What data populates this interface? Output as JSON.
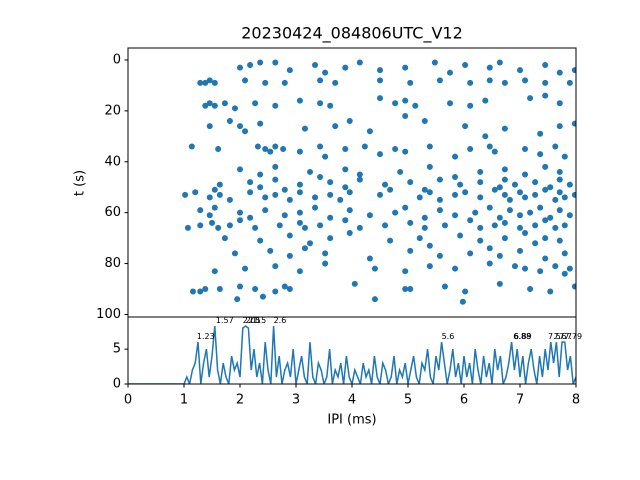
{
  "chart_data": [
    {
      "type": "scatter",
      "title": "20230424_084806UTC_V12",
      "ylabel": "t (s)",
      "color": "#1f77b4",
      "xlim": [
        0,
        8
      ],
      "ylim": [
        101,
        -4.7
      ],
      "yticks": [
        0,
        20,
        40,
        60,
        80,
        100
      ],
      "x": [
        2.0,
        2.18,
        2.36,
        2.63,
        2.89,
        3.34,
        3.52,
        3.88,
        4.14,
        4.5,
        4.95,
        5.48,
        5.75,
        6.02,
        6.46,
        6.64,
        7.0,
        7.45,
        7.71,
        7.98,
        1.29,
        1.38,
        1.46,
        1.55,
        2.09,
        2.45,
        2.8,
        3.43,
        3.7,
        4.5,
        5.04,
        5.57,
        6.11,
        6.46,
        6.73,
        7.09,
        7.45,
        7.89,
        1.38,
        1.46,
        1.55,
        1.73,
        1.91,
        2.27,
        2.63,
        3.07,
        3.43,
        3.61,
        4.5,
        4.77,
        4.95,
        5.13,
        5.75,
        6.11,
        6.38,
        7.18,
        7.45,
        7.71,
        1.46,
        1.82,
        2.0,
        2.09,
        2.36,
        3.16,
        3.7,
        3.96,
        4.32,
        4.95,
        5.3,
        6.02,
        6.38,
        6.73,
        7.36,
        7.71,
        7.98,
        1.14,
        1.61,
        2.32,
        2.45,
        2.54,
        2.63,
        2.77,
        3.07,
        3.43,
        3.52,
        3.88,
        4.23,
        4.5,
        4.77,
        4.95,
        5.39,
        5.84,
        6.11,
        6.46,
        6.55,
        7.09,
        7.36,
        7.63,
        7.8,
        2.0,
        2.36,
        2.63,
        3.25,
        3.43,
        3.88,
        4.14,
        4.86,
        5.39,
        5.84,
        6.29,
        6.73,
        7.09,
        7.45,
        7.71,
        1.64,
        2.18,
        2.36,
        2.63,
        3.07,
        3.61,
        3.88,
        4.14,
        4.59,
        5.04,
        5.3,
        5.57,
        5.93,
        6.29,
        6.64,
        6.73,
        6.91,
        7.27,
        7.54,
        7.71,
        7.89,
        1.02,
        1.2,
        1.46,
        1.55,
        1.64,
        1.82,
        2.18,
        2.45,
        2.63,
        2.8,
        2.89,
        3.07,
        3.34,
        3.61,
        3.79,
        3.96,
        4.5,
        4.68,
        5.21,
        5.39,
        5.57,
        5.84,
        6.02,
        6.29,
        6.55,
        6.73,
        6.82,
        7.0,
        7.09,
        7.27,
        7.45,
        7.63,
        7.71,
        7.8,
        7.98,
        1.29,
        1.46,
        1.55,
        2.0,
        2.18,
        2.45,
        2.8,
        3.07,
        3.34,
        3.61,
        3.96,
        4.32,
        4.77,
        4.95,
        5.3,
        5.57,
        5.84,
        6.2,
        6.46,
        6.64,
        6.82,
        7.0,
        7.18,
        7.36,
        7.54,
        7.71,
        7.89,
        1.07,
        1.29,
        1.5,
        1.61,
        1.82,
        2.0,
        2.27,
        2.71,
        3.07,
        3.16,
        3.43,
        3.88,
        4.14,
        4.59,
        5.04,
        5.3,
        5.66,
        6.11,
        6.29,
        6.55,
        6.73,
        7.0,
        7.27,
        7.45,
        7.63,
        7.8,
        1.73,
        2.36,
        2.89,
        3.25,
        3.61,
        3.96,
        4.68,
        5.21,
        5.39,
        5.93,
        6.29,
        6.73,
        7.09,
        7.27,
        7.45,
        7.71,
        1.91,
        2.54,
        2.89,
        3.16,
        3.52,
        4.32,
        5.04,
        5.57,
        6.11,
        6.46,
        6.64,
        7.0,
        7.45,
        7.8,
        1.55,
        2.09,
        2.63,
        3.07,
        3.52,
        4.41,
        4.95,
        5.39,
        5.84,
        6.46,
        6.91,
        7.09,
        7.36,
        7.63,
        7.8,
        7.89,
        1.16,
        1.29,
        1.38,
        1.64,
        2.0,
        2.27,
        2.63,
        2.8,
        2.89,
        4.05,
        4.95,
        5.04,
        5.66,
        6.02,
        6.64,
        7.18,
        7.54,
        7.98,
        1.95,
        2.41,
        4.41,
        5.98
      ],
      "values": [
        3,
        2,
        1,
        1,
        4,
        2,
        5,
        3,
        1,
        4,
        3,
        1,
        5,
        2,
        3,
        1,
        4,
        2,
        5,
        4,
        9,
        9,
        8,
        9,
        8,
        9,
        9,
        8,
        9,
        8,
        9,
        8,
        9,
        8,
        9,
        8,
        9,
        9,
        18,
        17,
        18,
        17,
        19,
        17,
        18,
        16,
        17,
        18,
        15,
        17,
        16,
        18,
        17,
        18,
        16,
        15,
        14,
        17,
        26,
        24,
        26,
        28,
        25,
        27,
        26,
        24,
        28,
        22,
        24,
        26,
        30,
        27,
        29,
        26,
        25,
        34,
        35,
        34,
        35,
        36,
        34,
        35,
        36,
        34,
        38,
        35,
        34,
        37,
        35,
        36,
        34,
        38,
        35,
        34,
        36,
        35,
        37,
        34,
        38,
        43,
        45,
        42,
        44,
        46,
        43,
        45,
        44,
        42,
        46,
        44,
        43,
        45,
        42,
        44,
        49,
        48,
        50,
        47,
        49,
        48,
        50,
        47,
        49,
        48,
        51,
        47,
        49,
        48,
        50,
        47,
        49,
        48,
        50,
        47,
        49,
        53,
        52,
        54,
        51,
        53,
        55,
        52,
        54,
        53,
        51,
        55,
        52,
        54,
        53,
        55,
        52,
        53,
        51,
        54,
        52,
        55,
        53,
        52,
        54,
        51,
        53,
        55,
        52,
        54,
        53,
        51,
        55,
        52,
        54,
        53,
        59,
        61,
        58,
        60,
        62,
        59,
        61,
        60,
        58,
        62,
        59,
        61,
        60,
        58,
        62,
        59,
        61,
        60,
        58,
        62,
        59,
        61,
        60,
        58,
        62,
        59,
        61,
        66,
        65,
        64,
        66,
        65,
        63,
        66,
        65,
        64,
        66,
        65,
        63,
        66,
        65,
        64,
        66,
        65,
        63,
        66,
        65,
        64,
        66,
        65,
        63,
        66,
        65,
        70,
        71,
        69,
        72,
        70,
        68,
        71,
        70,
        73,
        69,
        71,
        70,
        68,
        72,
        70,
        71,
        76,
        75,
        77,
        74,
        76,
        78,
        75,
        77,
        76,
        74,
        77,
        75,
        78,
        76,
        83,
        82,
        81,
        83,
        80,
        82,
        83,
        81,
        82,
        80,
        81,
        82,
        83,
        81,
        84,
        82,
        91,
        91,
        90,
        90,
        89,
        90,
        91,
        89,
        90,
        88,
        90,
        90,
        89,
        91,
        88,
        90,
        91,
        89,
        94,
        93,
        94,
        95
      ]
    },
    {
      "type": "line",
      "xlabel": "IPI (ms)",
      "color": "#1f77b4",
      "xlim": [
        0,
        8
      ],
      "xticks": [
        0,
        1,
        2,
        3,
        4,
        5,
        6,
        7,
        8
      ],
      "ylim": [
        0,
        9.6
      ],
      "yticks": [
        0,
        5
      ],
      "x": [
        0,
        1,
        1.05,
        1.1,
        1.15,
        1.2,
        1.25,
        1.3,
        1.35,
        1.4,
        1.45,
        1.5,
        1.55,
        1.6,
        1.65,
        1.7,
        1.75,
        1.8,
        1.85,
        1.9,
        1.95,
        2,
        2.05,
        2.1,
        2.15,
        2.2,
        2.25,
        2.3,
        2.35,
        2.4,
        2.45,
        2.5,
        2.55,
        2.6,
        2.65,
        2.7,
        2.75,
        2.8,
        2.85,
        2.9,
        2.95,
        3,
        3.05,
        3.1,
        3.15,
        3.2,
        3.25,
        3.3,
        3.35,
        3.4,
        3.45,
        3.5,
        3.55,
        3.6,
        3.65,
        3.7,
        3.75,
        3.8,
        3.85,
        3.9,
        3.95,
        4,
        4.05,
        4.1,
        4.15,
        4.2,
        4.25,
        4.3,
        4.35,
        4.4,
        4.45,
        4.5,
        4.55,
        4.6,
        4.65,
        4.7,
        4.75,
        4.8,
        4.85,
        4.9,
        4.95,
        5,
        5.05,
        5.1,
        5.15,
        5.2,
        5.25,
        5.3,
        5.35,
        5.4,
        5.45,
        5.5,
        5.55,
        5.6,
        5.65,
        5.7,
        5.75,
        5.8,
        5.85,
        5.9,
        5.95,
        6,
        6.05,
        6.1,
        6.15,
        6.2,
        6.25,
        6.3,
        6.35,
        6.4,
        6.45,
        6.5,
        6.55,
        6.6,
        6.65,
        6.7,
        6.75,
        6.8,
        6.85,
        6.9,
        6.95,
        7,
        7.05,
        7.1,
        7.15,
        7.2,
        7.25,
        7.3,
        7.35,
        7.4,
        7.45,
        7.5,
        7.55,
        7.6,
        7.65,
        7.7,
        7.75,
        7.8,
        7.85,
        7.9,
        7.95,
        8
      ],
      "values": [
        0,
        0,
        1,
        0,
        2,
        3,
        6,
        0,
        3,
        5,
        1,
        4,
        8.3,
        2,
        0,
        3,
        1,
        0,
        4,
        2,
        3,
        1,
        8,
        8.3,
        8,
        2,
        5,
        1,
        3,
        0,
        6,
        2,
        0,
        8.3,
        1,
        4,
        0,
        2,
        3,
        1,
        5,
        0,
        2,
        4,
        1,
        0,
        6,
        1,
        0,
        3,
        2,
        0,
        1,
        5,
        0,
        2,
        1,
        3,
        0,
        4,
        1,
        0,
        2,
        1,
        0,
        3,
        1,
        2,
        0,
        4,
        1,
        0,
        3,
        2,
        0,
        1,
        4,
        0,
        2,
        1,
        3,
        0,
        2,
        4,
        1,
        0,
        3,
        2,
        5,
        1,
        0,
        4,
        2,
        6,
        3,
        0,
        2,
        5,
        1,
        3,
        0,
        4,
        1,
        3,
        0,
        5,
        2,
        0,
        4,
        1,
        3,
        0,
        5,
        2,
        4,
        0,
        1,
        3,
        6,
        2,
        5,
        1,
        4,
        0,
        3,
        5,
        2,
        0,
        4,
        1,
        5,
        2,
        6,
        3,
        6,
        1,
        6,
        6,
        2,
        4,
        0,
        1
      ],
      "annotations": [
        {
          "text": "1.23",
          "x": 1.23,
          "y": 6
        },
        {
          "text": "1.57",
          "x": 1.57,
          "y": 8.3
        },
        {
          "text": "2.05",
          "x": 2.05,
          "y": 8.3
        },
        {
          "text": "2.1",
          "x": 2.1,
          "y": 8.3
        },
        {
          "text": "2.15",
          "x": 2.15,
          "y": 8.3
        },
        {
          "text": "2.6",
          "x": 2.6,
          "y": 8.3
        },
        {
          "text": "5.6",
          "x": 5.6,
          "y": 6
        },
        {
          "text": "6.88",
          "x": 6.88,
          "y": 6
        },
        {
          "text": "6.89",
          "x": 6.89,
          "y": 6
        },
        {
          "text": "7.5",
          "x": 7.5,
          "y": 6
        },
        {
          "text": "7.6",
          "x": 7.6,
          "y": 6
        },
        {
          "text": "7.7",
          "x": 7.7,
          "y": 6
        },
        {
          "text": "7.79",
          "x": 7.79,
          "y": 6
        }
      ]
    }
  ]
}
